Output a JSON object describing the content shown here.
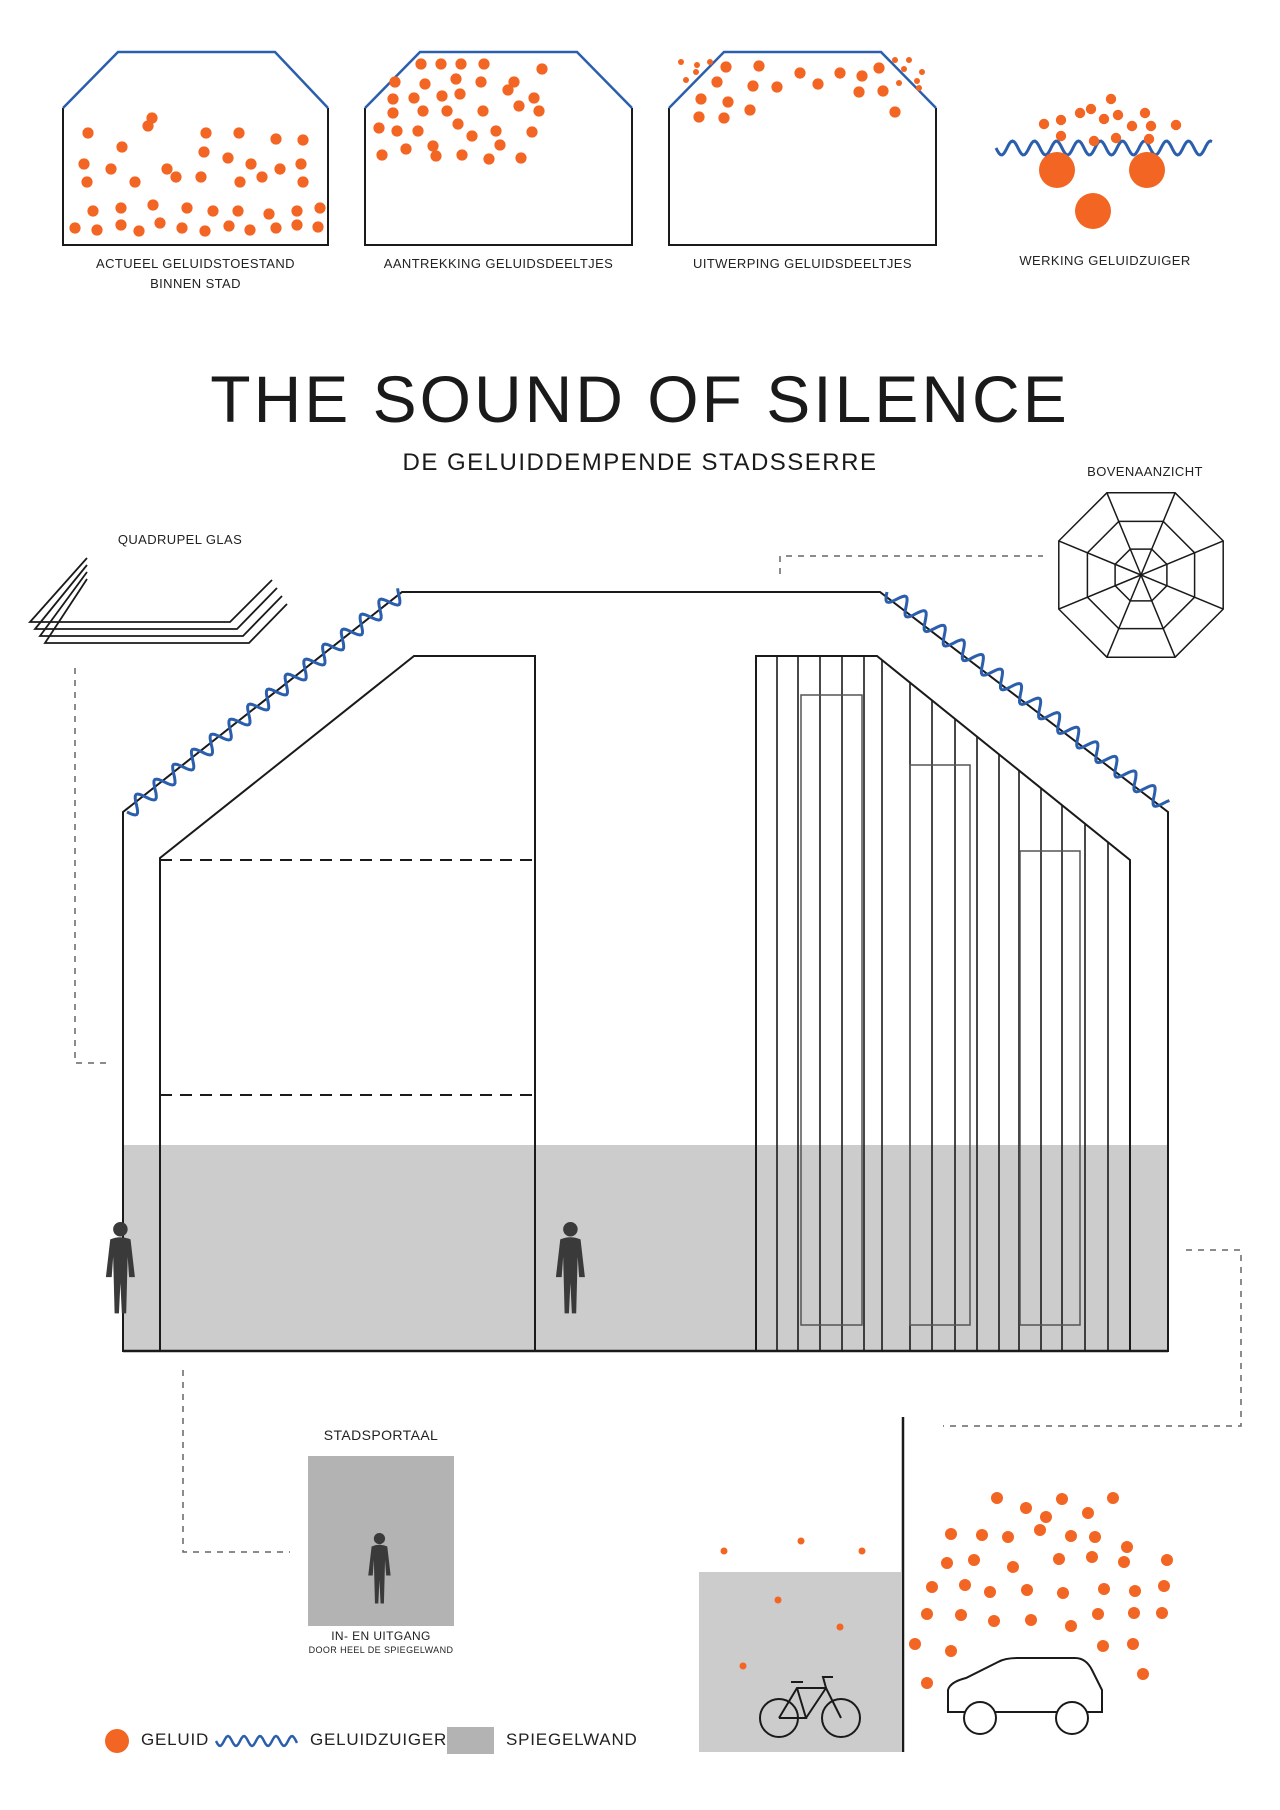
{
  "title": "THE SOUND OF SILENCE",
  "subtitle": "DE GELUIDDEMPENDE STADSSERRE",
  "panels": [
    {
      "line1": "ACTUEEL GELUIDSTOESTAND",
      "line2": "BINNEN STAD"
    },
    {
      "line1": "AANTREKKING GELUIDSDEELTJES",
      "line2": ""
    },
    {
      "line1": "UITWERPING GELUIDSDEELTJES",
      "line2": ""
    },
    {
      "line1": "WERKING GELUIDZUIGER",
      "line2": ""
    }
  ],
  "labels": {
    "top_view": "BOVENAANZICHT",
    "glass": "QUADRUPEL GLAS",
    "portal": "STADSPORTAAL",
    "portal_caption1": "IN- EN UITGANG",
    "portal_caption2": "DOOR HEEL DE SPIEGELWAND"
  },
  "legend": {
    "sound": "GELUID",
    "absorber": "GELUIDZUIGER",
    "mirror": "SPIEGELWAND"
  },
  "colors": {
    "sound": "#f26522",
    "absorber": "#2b5fad",
    "mirror": "#cccccc",
    "line": "#1a1a1a"
  }
}
